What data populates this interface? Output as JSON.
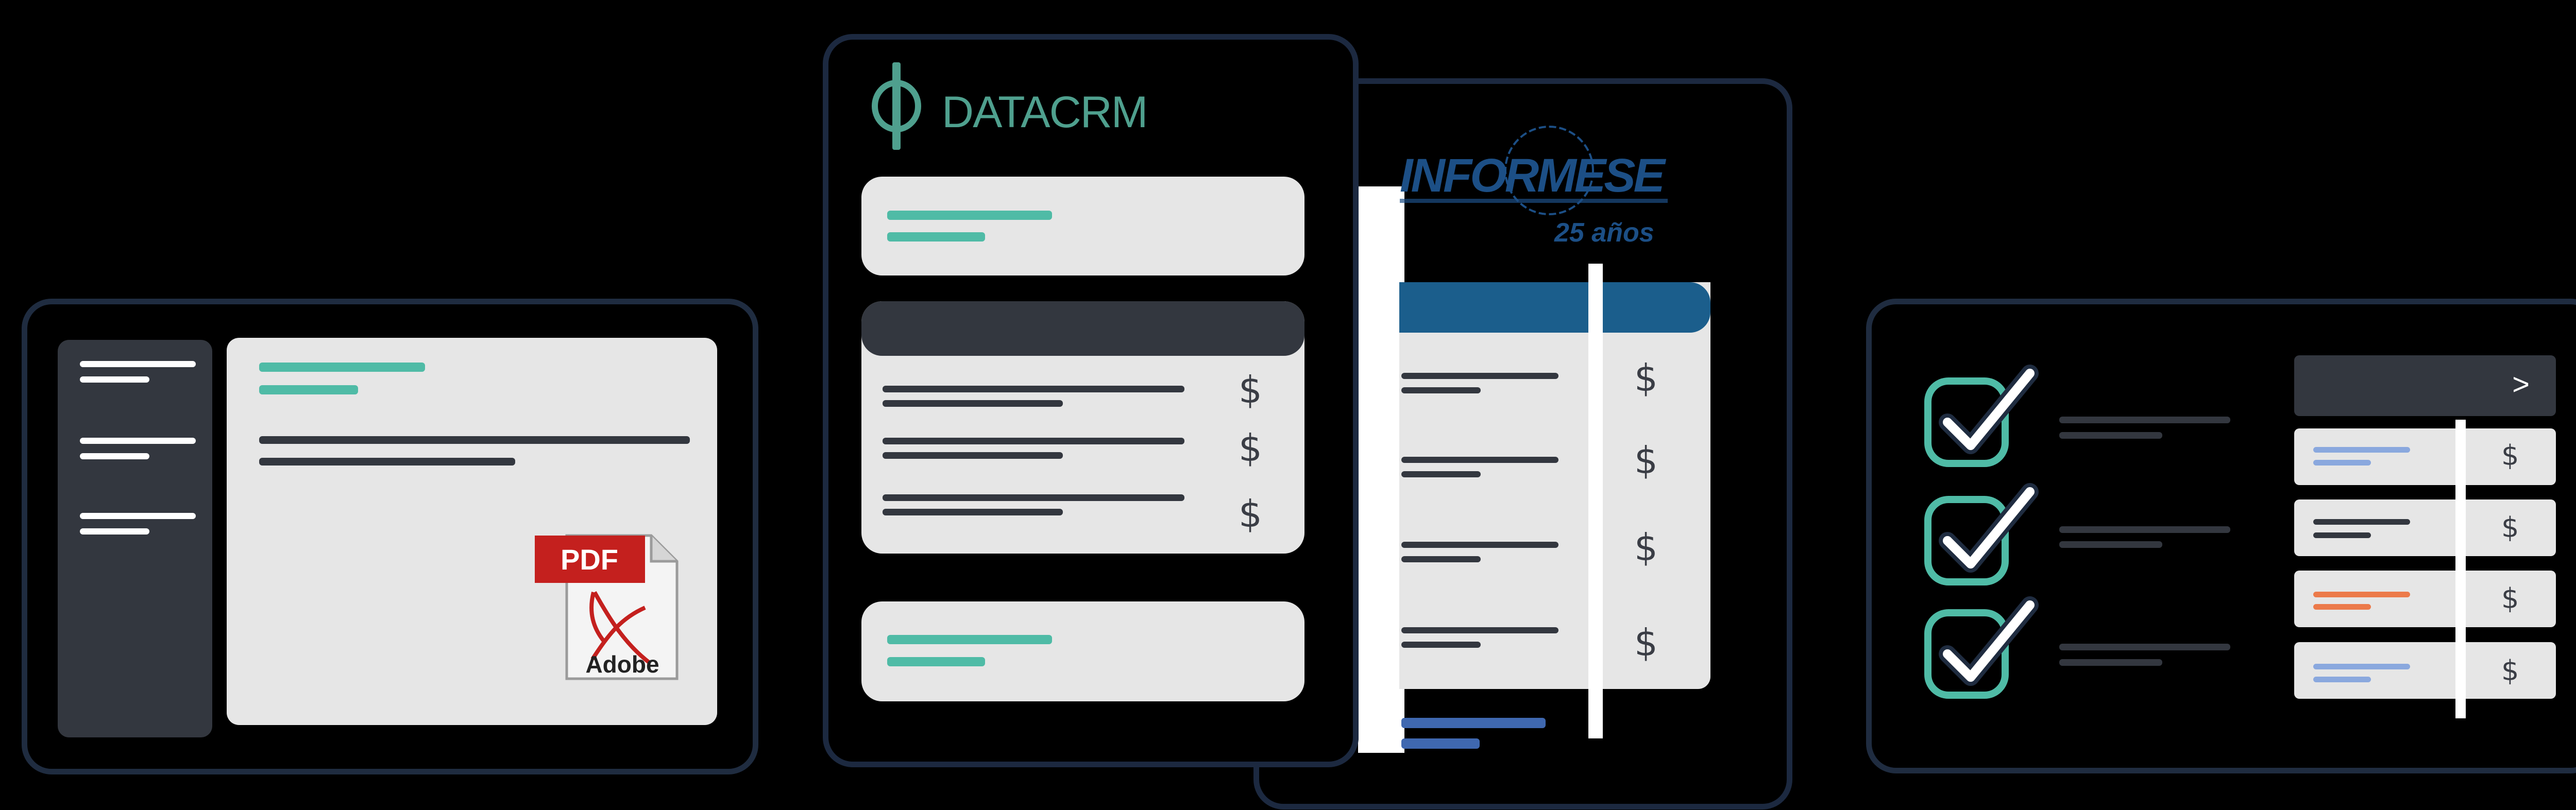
{
  "logos": {
    "datacrm": "DATACRM",
    "informese": "INFORMESE",
    "informese_sub": "25 años",
    "pdf_label": "PDF",
    "adobe_label": "Adobe"
  },
  "currency_symbol": "$",
  "arrow_glyph": ">",
  "colors": {
    "frame": "#1f2c40",
    "teal": "#4fbba6",
    "dark_panel": "#33373f",
    "light_panel": "#e6e6e6",
    "blue_header": "#1b5e8c",
    "blue_line": "#3f68b0",
    "light_blue_line": "#8aa8de",
    "orange_line": "#ec7a4a",
    "pdf_red": "#c4201e"
  }
}
